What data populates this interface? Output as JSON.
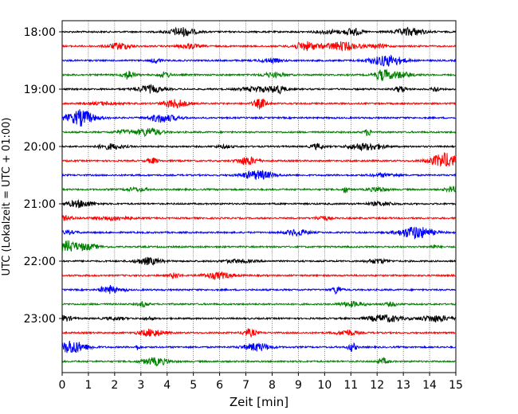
{
  "chart_data": {
    "type": "line",
    "title": "",
    "xlabel": "Zeit  [min]",
    "ylabel": "UTC (Lokalzeit = UTC + 01:00)",
    "xlim": [
      0,
      15
    ],
    "xticks": [
      0,
      1,
      2,
      3,
      4,
      5,
      6,
      7,
      8,
      9,
      10,
      11,
      12,
      13,
      14,
      15
    ],
    "yticks": [
      "18:00",
      "19:00",
      "20:00",
      "21:00",
      "22:00",
      "23:00"
    ],
    "grid": "vertical dotted",
    "row_interval_minutes": 15,
    "series_colors": [
      "#000000",
      "#ff0000",
      "#0000ff",
      "#008000"
    ],
    "rows": [
      {
        "start": "18:00",
        "color": "#000000"
      },
      {
        "start": "18:15",
        "color": "#ff0000"
      },
      {
        "start": "18:30",
        "color": "#0000ff"
      },
      {
        "start": "18:45",
        "color": "#008000"
      },
      {
        "start": "19:00",
        "color": "#000000"
      },
      {
        "start": "19:15",
        "color": "#ff0000"
      },
      {
        "start": "19:30",
        "color": "#0000ff"
      },
      {
        "start": "19:45",
        "color": "#008000"
      },
      {
        "start": "20:00",
        "color": "#000000"
      },
      {
        "start": "20:15",
        "color": "#ff0000"
      },
      {
        "start": "20:30",
        "color": "#0000ff"
      },
      {
        "start": "20:45",
        "color": "#008000"
      },
      {
        "start": "21:00",
        "color": "#000000"
      },
      {
        "start": "21:15",
        "color": "#ff0000"
      },
      {
        "start": "21:30",
        "color": "#0000ff"
      },
      {
        "start": "21:45",
        "color": "#008000"
      },
      {
        "start": "22:00",
        "color": "#000000"
      },
      {
        "start": "22:15",
        "color": "#ff0000"
      },
      {
        "start": "22:30",
        "color": "#0000ff"
      },
      {
        "start": "22:45",
        "color": "#008000"
      },
      {
        "start": "23:00",
        "color": "#000000"
      },
      {
        "start": "23:15",
        "color": "#ff0000"
      },
      {
        "start": "23:30",
        "color": "#0000ff"
      },
      {
        "start": "23:45",
        "color": "#008000"
      }
    ]
  }
}
